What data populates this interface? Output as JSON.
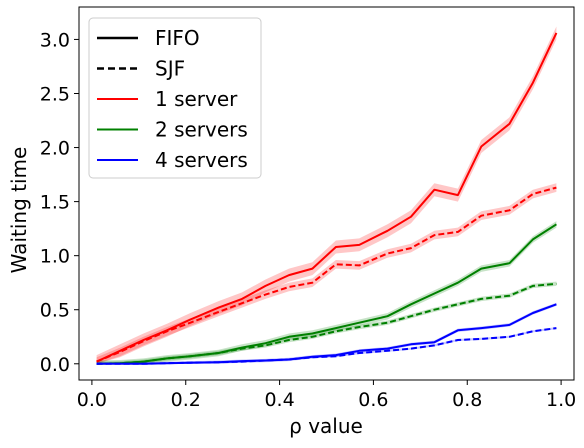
{
  "chart_data": {
    "type": "line",
    "title": "",
    "xlabel": "ρ value",
    "ylabel": "Waiting time",
    "xlim": [
      -0.0275,
      1.0275
    ],
    "ylim": [
      -0.15,
      3.3
    ],
    "xticks": [
      0.0,
      0.2,
      0.4,
      0.6,
      0.8,
      1.0
    ],
    "xtick_labels": [
      "0.0",
      "0.2",
      "0.4",
      "0.6",
      "0.8",
      "1.0"
    ],
    "yticks": [
      0.0,
      0.5,
      1.0,
      1.5,
      2.0,
      2.5,
      3.0
    ],
    "ytick_labels": [
      "0.0",
      "0.5",
      "1.0",
      "1.5",
      "2.0",
      "2.5",
      "3.0"
    ],
    "grid": false,
    "legend_position": "top-left",
    "legend": [
      {
        "label": "FIFO",
        "color": "#000000",
        "style": "solid"
      },
      {
        "label": "SJF",
        "color": "#000000",
        "style": "dashed"
      },
      {
        "label": "1 server",
        "color": "#ff0000",
        "style": "solid"
      },
      {
        "label": "2 servers",
        "color": "#008000",
        "style": "solid"
      },
      {
        "label": "4 servers",
        "color": "#0000ff",
        "style": "solid"
      }
    ],
    "x": [
      0.01,
      0.06,
      0.11,
      0.16,
      0.21,
      0.27,
      0.32,
      0.37,
      0.42,
      0.47,
      0.52,
      0.57,
      0.63,
      0.68,
      0.73,
      0.78,
      0.83,
      0.89,
      0.94,
      0.99
    ],
    "series": [
      {
        "server": "1 server",
        "policy": "FIFO",
        "color": "#ff0000",
        "dash": false,
        "values": [
          0.02,
          0.12,
          0.22,
          0.31,
          0.41,
          0.52,
          0.6,
          0.72,
          0.82,
          0.88,
          1.08,
          1.1,
          1.23,
          1.36,
          1.61,
          1.56,
          2.01,
          2.22,
          2.6,
          3.06
        ],
        "band": 0.06
      },
      {
        "server": "1 server",
        "policy": "SJF",
        "color": "#ff0000",
        "dash": true,
        "values": [
          0.02,
          0.11,
          0.21,
          0.3,
          0.38,
          0.48,
          0.56,
          0.64,
          0.71,
          0.75,
          0.92,
          0.91,
          1.02,
          1.07,
          1.19,
          1.22,
          1.37,
          1.42,
          1.57,
          1.63
        ],
        "band": 0.04
      },
      {
        "server": "2 servers",
        "policy": "FIFO",
        "color": "#008000",
        "dash": false,
        "values": [
          0.0,
          0.005,
          0.02,
          0.05,
          0.07,
          0.1,
          0.15,
          0.19,
          0.25,
          0.28,
          0.33,
          0.38,
          0.44,
          0.55,
          0.65,
          0.75,
          0.88,
          0.93,
          1.15,
          1.29
        ],
        "band": 0.03
      },
      {
        "server": "2 servers",
        "policy": "SJF",
        "color": "#008000",
        "dash": true,
        "values": [
          0.0,
          0.005,
          0.02,
          0.05,
          0.07,
          0.1,
          0.14,
          0.17,
          0.22,
          0.25,
          0.3,
          0.34,
          0.38,
          0.44,
          0.5,
          0.55,
          0.6,
          0.63,
          0.72,
          0.74
        ],
        "band": 0.02
      },
      {
        "server": "4 servers",
        "policy": "FIFO",
        "color": "#0000ff",
        "dash": false,
        "values": [
          0.0,
          0.0,
          0.0,
          0.005,
          0.01,
          0.015,
          0.025,
          0.03,
          0.04,
          0.065,
          0.08,
          0.12,
          0.14,
          0.18,
          0.2,
          0.31,
          0.33,
          0.36,
          0.47,
          0.55
        ],
        "band": 0.015
      },
      {
        "server": "4 servers",
        "policy": "SJF",
        "color": "#0000ff",
        "dash": true,
        "values": [
          0.0,
          0.0,
          0.0,
          0.005,
          0.01,
          0.015,
          0.02,
          0.03,
          0.04,
          0.06,
          0.07,
          0.1,
          0.12,
          0.14,
          0.17,
          0.22,
          0.23,
          0.25,
          0.3,
          0.33
        ],
        "band": 0.01
      }
    ]
  }
}
